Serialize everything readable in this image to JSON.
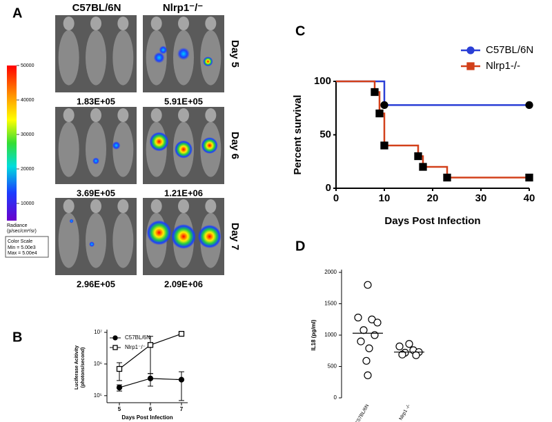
{
  "panel_a": {
    "label": "A",
    "columns": [
      "C57BL/6N",
      "Nlrp1⁻/⁻"
    ],
    "rows": [
      {
        "day": "Day 5",
        "values": [
          "1.83E+05",
          "5.91E+05"
        ]
      },
      {
        "day": "Day 6",
        "values": [
          "3.69E+05",
          "1.21E+06"
        ]
      },
      {
        "day": "Day 7",
        "values": [
          "2.96E+05",
          "2.09E+06"
        ]
      }
    ],
    "colorbar": {
      "title": "Radiance",
      "unit": "(p/sec/cm²/sr)",
      "lim": [
        5000,
        50000
      ],
      "ticks": [
        10000,
        20000,
        30000,
        40000,
        50000
      ]
    },
    "color_scale": {
      "title": "Color Scale",
      "min": "Min = 5.00e3",
      "max": "Max = 5.00e4"
    }
  },
  "chart_data": [
    {
      "type": "line",
      "panel": "B",
      "x": [
        5,
        6,
        7
      ],
      "xlim": [
        4.6,
        7.2
      ],
      "xticks": [
        5,
        6,
        7
      ],
      "ylim": [
        60000,
        10000000
      ],
      "log_y": true,
      "yticks": [
        {
          "value": 100000,
          "label": "10⁵"
        },
        {
          "value": 1000000,
          "label": "10⁶"
        },
        {
          "value": 10000000,
          "label": "10⁷"
        }
      ],
      "xlabel": "Days Post Infection",
      "ylabel": [
        "Luciferase Acitivity",
        "(photons/second)"
      ],
      "legend": "upper left",
      "series": [
        {
          "name": "C57BL/6N",
          "color": "#000000",
          "marker": "filled-circle",
          "values": [
            180000,
            350000,
            320000
          ],
          "errors": [
            40000,
            150000,
            250000
          ]
        },
        {
          "name": "Nlrp1⁻/⁻",
          "color": "#000000",
          "marker": "open-square",
          "values": [
            700000,
            4000000,
            9000000
          ],
          "errors": [
            400000,
            3500000,
            1000000
          ]
        }
      ]
    },
    {
      "type": "step",
      "panel": "C",
      "xlim": [
        0,
        40
      ],
      "xticks": [
        0,
        10,
        20,
        30,
        40
      ],
      "ylim": [
        0,
        100
      ],
      "yticks": [
        0,
        50,
        100
      ],
      "xlabel": "Days Post Infection",
      "ylabel": "Percent survival",
      "legend": "upper right",
      "series": [
        {
          "name": "C57BL/6N",
          "color": "#2a3fd6",
          "marker": "filled-circle",
          "x": [
            0,
            10,
            40
          ],
          "values": [
            100,
            77.8,
            77.8
          ]
        },
        {
          "name": "Nlrp1-/-",
          "color": "#d2401a",
          "marker": "filled-square",
          "x": [
            0,
            8,
            9,
            10,
            17,
            18,
            23,
            40
          ],
          "values": [
            100,
            90,
            70,
            40,
            30,
            20,
            10,
            10
          ]
        }
      ]
    },
    {
      "type": "dotplot",
      "panel": "D",
      "categories": [
        "C57BL/6N",
        "Nlrp1 -/-"
      ],
      "ylim": [
        0,
        2000
      ],
      "yticks": [
        0,
        500,
        1000,
        1500,
        2000
      ],
      "ylabel": "IL18 (pg/ml)",
      "values": [
        [
          1800,
          1280,
          1250,
          1200,
          1080,
          1000,
          900,
          790,
          590,
          360
        ],
        [
          860,
          820,
          760,
          730,
          720,
          680,
          690
        ]
      ],
      "medians": [
        1030,
        730
      ]
    }
  ]
}
